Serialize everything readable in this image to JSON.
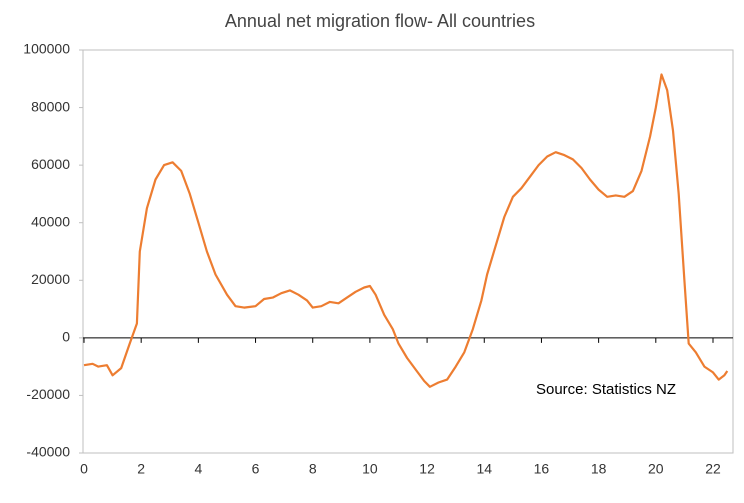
{
  "chart_data": {
    "type": "line",
    "title": "Annual net migration flow- All countries",
    "annotation": "Source: Statistics NZ",
    "xlim": [
      0,
      22.7
    ],
    "xticks": [
      0,
      2,
      4,
      6,
      8,
      10,
      12,
      14,
      16,
      18,
      20,
      22
    ],
    "ylim": [
      -40000,
      100000
    ],
    "yticks": [
      -40000,
      -20000,
      0,
      20000,
      40000,
      60000,
      80000,
      100000
    ],
    "series": [
      {
        "color": "#ed7d31",
        "x": [
          0,
          0.3,
          0.5,
          0.8,
          1.0,
          1.3,
          1.6,
          1.85,
          1.95,
          2.2,
          2.5,
          2.8,
          3.1,
          3.4,
          3.7,
          4.0,
          4.3,
          4.6,
          5.0,
          5.3,
          5.6,
          6.0,
          6.3,
          6.6,
          6.9,
          7.2,
          7.5,
          7.8,
          8.0,
          8.3,
          8.6,
          8.9,
          9.2,
          9.5,
          9.8,
          10.0,
          10.2,
          10.5,
          10.8,
          11.0,
          11.3,
          11.6,
          11.9,
          12.1,
          12.4,
          12.7,
          13.0,
          13.3,
          13.6,
          13.9,
          14.1,
          14.4,
          14.7,
          15.0,
          15.3,
          15.6,
          15.9,
          16.2,
          16.5,
          16.8,
          17.1,
          17.4,
          17.7,
          18.0,
          18.3,
          18.6,
          18.9,
          19.2,
          19.5,
          19.8,
          20.0,
          20.2,
          20.4,
          20.6,
          20.8,
          21.0,
          21.15,
          21.4,
          21.7,
          22.0,
          22.2,
          22.4,
          22.5
        ],
        "values": [
          -9500,
          -9000,
          -10000,
          -9500,
          -13000,
          -10500,
          -2000,
          5000,
          30000,
          45000,
          55000,
          60000,
          61000,
          58000,
          50000,
          40000,
          30000,
          22000,
          15000,
          11000,
          10500,
          11000,
          13500,
          14000,
          15500,
          16500,
          15000,
          13000,
          10500,
          11000,
          12500,
          12000,
          14000,
          16000,
          17500,
          18000,
          15000,
          8000,
          3000,
          -2000,
          -7000,
          -11000,
          -15000,
          -17000,
          -15500,
          -14500,
          -10000,
          -5000,
          3000,
          13000,
          22000,
          32000,
          42000,
          49000,
          52000,
          56000,
          60000,
          63000,
          64500,
          63500,
          62000,
          59000,
          55000,
          51500,
          49000,
          49500,
          49000,
          51000,
          58000,
          70000,
          80000,
          91500,
          86000,
          72000,
          50000,
          20000,
          -2000,
          -5000,
          -10000,
          -12000,
          -14500,
          -13000,
          -11500
        ]
      }
    ]
  }
}
